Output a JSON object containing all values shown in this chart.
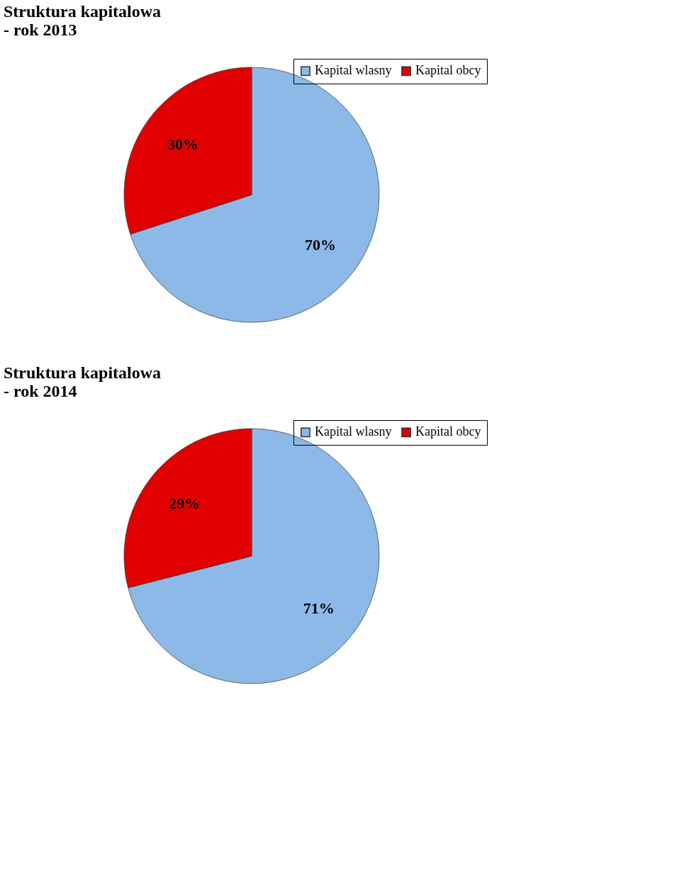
{
  "chart_data": [
    {
      "type": "pie",
      "title": "Struktura kapitalowa\n- rok 2013",
      "categories": [
        "Kapital wlasny",
        "Kapital obcy"
      ],
      "values": [
        70,
        30
      ],
      "colors": [
        "#8db9e8",
        "#e00000"
      ],
      "value_labels": [
        "70%",
        "30%"
      ],
      "legend": "top right"
    },
    {
      "type": "pie",
      "title": "Struktura kapitalowa\n- rok 2014",
      "categories": [
        "Kapital wlasny",
        "Kapital obcy"
      ],
      "values": [
        71,
        29
      ],
      "colors": [
        "#8db9e8",
        "#e00000"
      ],
      "value_labels": [
        "71%",
        "29%"
      ],
      "legend": "top right"
    }
  ]
}
